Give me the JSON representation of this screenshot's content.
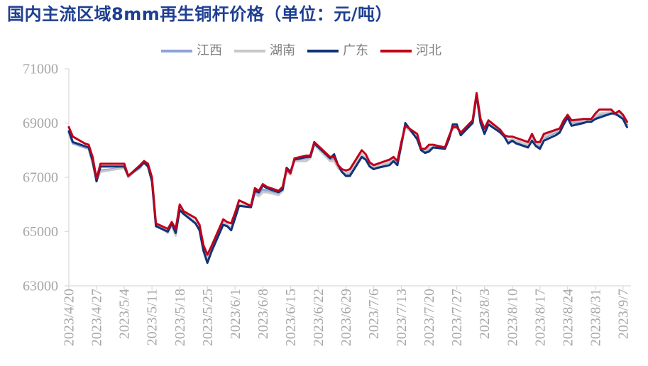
{
  "chart_data": {
    "type": "line",
    "title": "国内主流区域8mm再生铜杆价格（单位：元/吨）",
    "title_color": "#1e3f91",
    "grid": false,
    "legend_position": "top-center",
    "xlim": [
      "2023/4/20",
      "2023/9/9"
    ],
    "ylim": [
      63000,
      71000
    ],
    "y_tick_labels": [
      "63000",
      "65000",
      "67000",
      "69000",
      "71000"
    ],
    "x_tick_labels": [
      "2023/4/20",
      "2023/4/27",
      "2023/5/4",
      "2023/5/11",
      "2023/5/18",
      "2023/5/25",
      "2023/6/1",
      "2023/6/8",
      "2023/6/15",
      "2023/6/22",
      "2023/6/29",
      "2023/7/6",
      "2023/7/13",
      "2023/7/20",
      "2023/7/27",
      "2023/8/3",
      "2023/8/10",
      "2023/8/17",
      "2023/8/24",
      "2023/8/31",
      "2023/9/7"
    ],
    "x": [
      "2023/4/20",
      "2023/4/21",
      "2023/4/24",
      "2023/4/25",
      "2023/4/26",
      "2023/4/27",
      "2023/4/28",
      "2023/5/4",
      "2023/5/5",
      "2023/5/8",
      "2023/5/9",
      "2023/5/10",
      "2023/5/11",
      "2023/5/12",
      "2023/5/15",
      "2023/5/16",
      "2023/5/17",
      "2023/5/18",
      "2023/5/19",
      "2023/5/22",
      "2023/5/23",
      "2023/5/24",
      "2023/5/25",
      "2023/5/26",
      "2023/5/29",
      "2023/5/30",
      "2023/5/31",
      "2023/6/1",
      "2023/6/2",
      "2023/6/5",
      "2023/6/6",
      "2023/6/7",
      "2023/6/8",
      "2023/6/9",
      "2023/6/12",
      "2023/6/13",
      "2023/6/14",
      "2023/6/15",
      "2023/6/16",
      "2023/6/19",
      "2023/6/20",
      "2023/6/21",
      "2023/6/25",
      "2023/6/26",
      "2023/6/27",
      "2023/6/28",
      "2023/6/29",
      "2023/6/30",
      "2023/7/3",
      "2023/7/4",
      "2023/7/5",
      "2023/7/6",
      "2023/7/7",
      "2023/7/10",
      "2023/7/11",
      "2023/7/12",
      "2023/7/13",
      "2023/7/14",
      "2023/7/17",
      "2023/7/18",
      "2023/7/19",
      "2023/7/20",
      "2023/7/21",
      "2023/7/24",
      "2023/7/25",
      "2023/7/26",
      "2023/7/27",
      "2023/7/28",
      "2023/7/31",
      "2023/8/1",
      "2023/8/2",
      "2023/8/3",
      "2023/8/4",
      "2023/8/7",
      "2023/8/8",
      "2023/8/9",
      "2023/8/10",
      "2023/8/11",
      "2023/8/14",
      "2023/8/15",
      "2023/8/16",
      "2023/8/17",
      "2023/8/18",
      "2023/8/21",
      "2023/8/22",
      "2023/8/23",
      "2023/8/24",
      "2023/8/25",
      "2023/8/28",
      "2023/8/29",
      "2023/8/30",
      "2023/8/31",
      "2023/9/1",
      "2023/9/4",
      "2023/9/5",
      "2023/9/6",
      "2023/9/7",
      "2023/9/8"
    ],
    "series": [
      {
        "name": "江西",
        "color": "#8ea3d6",
        "values": [
          68650,
          68250,
          68100,
          68050,
          67600,
          66900,
          67250,
          67350,
          67050,
          67350,
          67550,
          67400,
          66900,
          65200,
          65000,
          65250,
          64900,
          65850,
          65650,
          65300,
          65100,
          64350,
          63950,
          64300,
          65300,
          65250,
          65100,
          65550,
          66000,
          65900,
          66450,
          66350,
          66550,
          66500,
          66400,
          66500,
          67250,
          67150,
          67650,
          67700,
          67750,
          68250,
          67650,
          67700,
          67400,
          67200,
          67100,
          67100,
          67800,
          67700,
          67450,
          67350,
          67400,
          67550,
          67650,
          67500,
          68200,
          68900,
          68450,
          68000,
          67950,
          68050,
          68100,
          68050,
          68400,
          68850,
          68900,
          68600,
          69050,
          70000,
          69000,
          68650,
          69000,
          68700,
          68500,
          68300,
          68400,
          68300,
          68150,
          68400,
          68200,
          68150,
          68450,
          68650,
          68700,
          69000,
          69250,
          69000,
          69050,
          69100,
          69100,
          69200,
          69300,
          69400,
          69300,
          69300,
          69200,
          68950
        ]
      },
      {
        "name": "湖南",
        "color": "#c8c8c8",
        "values": [
          68700,
          68300,
          68150,
          68050,
          67500,
          66900,
          67200,
          67350,
          67000,
          67400,
          67500,
          67400,
          66900,
          65250,
          64950,
          65200,
          64850,
          65900,
          65700,
          65350,
          65150,
          64400,
          64000,
          64350,
          65350,
          65250,
          65150,
          65550,
          66000,
          65950,
          66400,
          66300,
          66450,
          66450,
          66350,
          66500,
          67200,
          67100,
          67600,
          67600,
          67700,
          68200,
          67600,
          67600,
          67350,
          67200,
          67150,
          67200,
          67850,
          67700,
          67450,
          67400,
          67400,
          67550,
          67650,
          67550,
          68200,
          68850,
          68500,
          68000,
          68000,
          68100,
          68100,
          68050,
          68450,
          68800,
          68850,
          68600,
          69050,
          69950,
          69050,
          68700,
          69000,
          68700,
          68500,
          68350,
          68400,
          68350,
          68200,
          68450,
          68250,
          68200,
          68500,
          68700,
          68750,
          69050,
          69200,
          69050,
          69100,
          69100,
          69100,
          69250,
          69350,
          69400,
          69300,
          69350,
          69250,
          69000
        ]
      },
      {
        "name": "广东",
        "color": "#103278",
        "values": [
          68700,
          68300,
          68150,
          68100,
          67600,
          66850,
          67400,
          67400,
          67050,
          67400,
          67550,
          67400,
          66850,
          65200,
          65000,
          65300,
          64950,
          65800,
          65650,
          65300,
          65050,
          64300,
          63850,
          64250,
          65250,
          65200,
          65050,
          65500,
          65950,
          65900,
          66500,
          66450,
          66700,
          66600,
          66450,
          66550,
          67350,
          67200,
          67650,
          67750,
          67750,
          68250,
          67700,
          67850,
          67450,
          67200,
          67050,
          67050,
          67750,
          67650,
          67400,
          67300,
          67350,
          67450,
          67600,
          67450,
          68200,
          69000,
          68400,
          68000,
          67900,
          67950,
          68100,
          68050,
          68400,
          68950,
          68950,
          68550,
          69000,
          70050,
          69000,
          68600,
          68950,
          68650,
          68500,
          68250,
          68350,
          68250,
          68100,
          68350,
          68150,
          68050,
          68350,
          68550,
          68650,
          68950,
          69200,
          68900,
          69000,
          69050,
          69050,
          69150,
          69200,
          69350,
          69350,
          69250,
          69150,
          68850
        ]
      },
      {
        "name": "河北",
        "color": "#c0001a",
        "values": [
          68850,
          68500,
          68250,
          68200,
          67750,
          66950,
          67500,
          67500,
          67050,
          67450,
          67600,
          67500,
          67000,
          65300,
          65100,
          65350,
          65100,
          66000,
          65750,
          65500,
          65250,
          64500,
          64150,
          64450,
          65450,
          65350,
          65300,
          65700,
          66150,
          65950,
          66600,
          66500,
          66750,
          66650,
          66500,
          66650,
          67300,
          67150,
          67700,
          67800,
          67800,
          68300,
          67750,
          67750,
          67450,
          67300,
          67250,
          67300,
          68000,
          67850,
          67550,
          67450,
          67500,
          67650,
          67750,
          67600,
          68300,
          68900,
          68600,
          68050,
          68050,
          68200,
          68200,
          68100,
          68500,
          68850,
          68850,
          68650,
          69100,
          70100,
          69150,
          68800,
          69100,
          68750,
          68550,
          68500,
          68500,
          68450,
          68300,
          68600,
          68300,
          68300,
          68600,
          68750,
          68800,
          69100,
          69300,
          69100,
          69150,
          69150,
          69150,
          69350,
          69500,
          69500,
          69350,
          69450,
          69300,
          69050
        ]
      }
    ]
  }
}
